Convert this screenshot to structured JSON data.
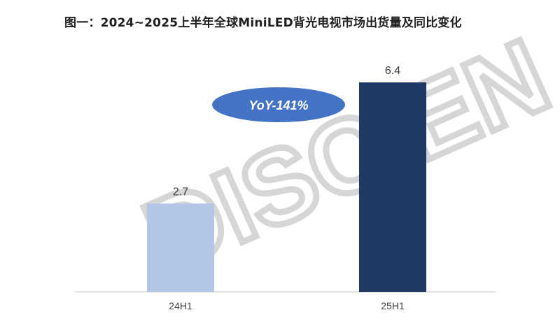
{
  "title": "图一：2024~2025上半年全球MiniLED背光电视市场出货量及同比变化",
  "watermark": "DISCIEN",
  "annotation": "YoY-141%",
  "colors": {
    "bar_24h1": "#b4c6e7",
    "bar_25h1": "#1f3864",
    "yoy_ellipse": "#4472c4",
    "axis": "#d9d9d9"
  },
  "chart_data": {
    "type": "bar",
    "categories": [
      "24H1",
      "25H1"
    ],
    "values": [
      2.7,
      6.4
    ],
    "data_labels": [
      "2.7",
      "6.4"
    ],
    "title": "图一：2024~2025上半年全球MiniLED背光电视市场出货量及同比变化",
    "xlabel": "",
    "ylabel": "",
    "ylim": [
      0,
      6.4
    ],
    "grid": false,
    "annotation": "YoY-141%"
  }
}
